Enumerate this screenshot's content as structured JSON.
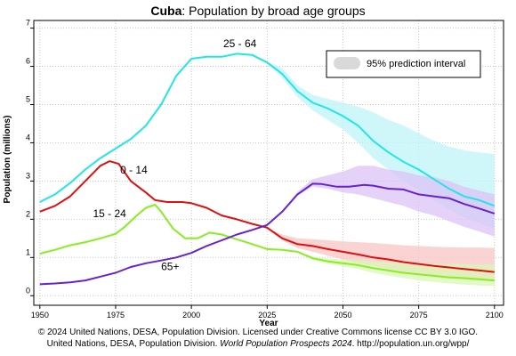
{
  "chart_data": {
    "type": "line",
    "title_country": "Cuba",
    "title_rest": ": Population by broad age groups",
    "xlabel": "Year",
    "ylabel": "Population (millions)",
    "xlim": [
      1948,
      2103
    ],
    "ylim": [
      -0.25,
      7.2
    ],
    "x_ticks": [
      1950,
      1975,
      2000,
      2025,
      2050,
      2075,
      2100
    ],
    "y_ticks": [
      0,
      1,
      2,
      3,
      4,
      5,
      6,
      7
    ],
    "grid": true,
    "legend_position": "top-right",
    "legend_label": "95% prediction interval",
    "series": [
      {
        "label": "25 - 64",
        "color": "#22e6e6",
        "band_color": "#bff3f7",
        "points": [
          [
            1950,
            2.45
          ],
          [
            1955,
            2.65
          ],
          [
            1960,
            2.95
          ],
          [
            1965,
            3.3
          ],
          [
            1970,
            3.6
          ],
          [
            1975,
            3.85
          ],
          [
            1980,
            4.1
          ],
          [
            1985,
            4.45
          ],
          [
            1990,
            5.0
          ],
          [
            1995,
            5.75
          ],
          [
            2000,
            6.2
          ],
          [
            2005,
            6.25
          ],
          [
            2010,
            6.25
          ],
          [
            2015,
            6.33
          ],
          [
            2020,
            6.3
          ],
          [
            2025,
            6.1
          ],
          [
            2030,
            5.8
          ],
          [
            2035,
            5.35
          ],
          [
            2040,
            5.05
          ],
          [
            2045,
            4.9
          ],
          [
            2050,
            4.7
          ],
          [
            2055,
            4.45
          ],
          [
            2060,
            4.05
          ],
          [
            2065,
            3.75
          ],
          [
            2070,
            3.5
          ],
          [
            2075,
            3.3
          ],
          [
            2080,
            3.05
          ],
          [
            2085,
            2.8
          ],
          [
            2090,
            2.6
          ],
          [
            2095,
            2.5
          ],
          [
            2100,
            2.35
          ]
        ],
        "band": [
          [
            2024,
            6.15,
            6.15
          ],
          [
            2030,
            5.95,
            5.7
          ],
          [
            2035,
            5.5,
            5.2
          ],
          [
            2040,
            5.25,
            4.85
          ],
          [
            2045,
            5.15,
            4.6
          ],
          [
            2050,
            5.05,
            4.35
          ],
          [
            2055,
            4.95,
            4.0
          ],
          [
            2060,
            4.8,
            3.6
          ],
          [
            2065,
            4.6,
            3.3
          ],
          [
            2070,
            4.45,
            3.0
          ],
          [
            2075,
            4.25,
            2.75
          ],
          [
            2080,
            4.05,
            2.5
          ],
          [
            2085,
            3.9,
            2.25
          ],
          [
            2090,
            3.8,
            2.05
          ],
          [
            2095,
            3.75,
            1.9
          ],
          [
            2100,
            3.7,
            1.75
          ]
        ],
        "label_pos": [
          2016,
          6.5
        ]
      },
      {
        "label": "0 - 14",
        "color": "#dd1010",
        "band_color": "#f8c4c4",
        "points": [
          [
            1950,
            2.2
          ],
          [
            1955,
            2.35
          ],
          [
            1960,
            2.6
          ],
          [
            1965,
            3.0
          ],
          [
            1970,
            3.4
          ],
          [
            1973,
            3.52
          ],
          [
            1976,
            3.45
          ],
          [
            1980,
            3.0
          ],
          [
            1985,
            2.7
          ],
          [
            1988,
            2.5
          ],
          [
            1992,
            2.45
          ],
          [
            1997,
            2.45
          ],
          [
            2000,
            2.42
          ],
          [
            2005,
            2.3
          ],
          [
            2010,
            2.1
          ],
          [
            2015,
            2.0
          ],
          [
            2020,
            1.88
          ],
          [
            2025,
            1.78
          ],
          [
            2030,
            1.5
          ],
          [
            2035,
            1.35
          ],
          [
            2040,
            1.3
          ],
          [
            2045,
            1.22
          ],
          [
            2050,
            1.15
          ],
          [
            2055,
            1.08
          ],
          [
            2060,
            1.0
          ],
          [
            2065,
            0.95
          ],
          [
            2070,
            0.88
          ],
          [
            2075,
            0.83
          ],
          [
            2080,
            0.78
          ],
          [
            2085,
            0.74
          ],
          [
            2090,
            0.7
          ],
          [
            2095,
            0.66
          ],
          [
            2100,
            0.62
          ]
        ],
        "band": [
          [
            2024,
            1.8,
            1.8
          ],
          [
            2030,
            1.6,
            1.45
          ],
          [
            2035,
            1.5,
            1.25
          ],
          [
            2040,
            1.48,
            1.15
          ],
          [
            2045,
            1.45,
            1.05
          ],
          [
            2050,
            1.42,
            0.95
          ],
          [
            2055,
            1.4,
            0.85
          ],
          [
            2060,
            1.38,
            0.78
          ],
          [
            2065,
            1.35,
            0.7
          ],
          [
            2070,
            1.32,
            0.62
          ],
          [
            2075,
            1.3,
            0.55
          ],
          [
            2080,
            1.28,
            0.5
          ],
          [
            2085,
            1.27,
            0.45
          ],
          [
            2090,
            1.26,
            0.42
          ],
          [
            2095,
            1.26,
            0.39
          ],
          [
            2100,
            1.25,
            0.36
          ]
        ],
        "label_pos": [
          1981,
          3.2
        ]
      },
      {
        "label": "15 - 24",
        "color": "#88ee22",
        "band_color": "#daf7b6",
        "points": [
          [
            1950,
            1.1
          ],
          [
            1955,
            1.2
          ],
          [
            1960,
            1.32
          ],
          [
            1965,
            1.4
          ],
          [
            1970,
            1.5
          ],
          [
            1975,
            1.62
          ],
          [
            1978,
            1.8
          ],
          [
            1982,
            2.1
          ],
          [
            1985,
            2.3
          ],
          [
            1988,
            2.38
          ],
          [
            1990,
            2.2
          ],
          [
            1994,
            1.75
          ],
          [
            1998,
            1.5
          ],
          [
            2002,
            1.5
          ],
          [
            2006,
            1.65
          ],
          [
            2010,
            1.6
          ],
          [
            2014,
            1.5
          ],
          [
            2018,
            1.4
          ],
          [
            2022,
            1.3
          ],
          [
            2025,
            1.22
          ],
          [
            2030,
            1.2
          ],
          [
            2035,
            1.15
          ],
          [
            2040,
            0.98
          ],
          [
            2045,
            0.9
          ],
          [
            2050,
            0.85
          ],
          [
            2055,
            0.8
          ],
          [
            2060,
            0.72
          ],
          [
            2065,
            0.66
          ],
          [
            2070,
            0.6
          ],
          [
            2075,
            0.56
          ],
          [
            2080,
            0.52
          ],
          [
            2085,
            0.48
          ],
          [
            2090,
            0.46
          ],
          [
            2095,
            0.43
          ],
          [
            2100,
            0.4
          ]
        ],
        "band": [
          [
            2035,
            1.15,
            1.15
          ],
          [
            2040,
            1.02,
            0.94
          ],
          [
            2045,
            0.97,
            0.84
          ],
          [
            2050,
            0.95,
            0.77
          ],
          [
            2055,
            0.93,
            0.7
          ],
          [
            2060,
            0.9,
            0.6
          ],
          [
            2065,
            0.88,
            0.53
          ],
          [
            2070,
            0.86,
            0.46
          ],
          [
            2075,
            0.85,
            0.4
          ],
          [
            2080,
            0.84,
            0.36
          ],
          [
            2085,
            0.83,
            0.32
          ],
          [
            2090,
            0.83,
            0.29
          ],
          [
            2095,
            0.82,
            0.27
          ],
          [
            2100,
            0.82,
            0.25
          ]
        ],
        "label_pos": [
          1973,
          2.05
        ]
      },
      {
        "label": "65+",
        "color": "#6622cc",
        "band_color": "#dcc3f7",
        "points": [
          [
            1950,
            0.3
          ],
          [
            1955,
            0.32
          ],
          [
            1960,
            0.35
          ],
          [
            1965,
            0.4
          ],
          [
            1970,
            0.5
          ],
          [
            1975,
            0.6
          ],
          [
            1980,
            0.75
          ],
          [
            1985,
            0.85
          ],
          [
            1990,
            0.92
          ],
          [
            1995,
            1.0
          ],
          [
            2000,
            1.12
          ],
          [
            2005,
            1.3
          ],
          [
            2010,
            1.45
          ],
          [
            2015,
            1.6
          ],
          [
            2020,
            1.72
          ],
          [
            2025,
            1.85
          ],
          [
            2030,
            2.2
          ],
          [
            2035,
            2.65
          ],
          [
            2040,
            2.93
          ],
          [
            2043,
            2.92
          ],
          [
            2048,
            2.85
          ],
          [
            2052,
            2.85
          ],
          [
            2057,
            2.9
          ],
          [
            2060,
            2.88
          ],
          [
            2065,
            2.8
          ],
          [
            2070,
            2.78
          ],
          [
            2075,
            2.65
          ],
          [
            2080,
            2.6
          ],
          [
            2085,
            2.55
          ],
          [
            2090,
            2.4
          ],
          [
            2095,
            2.28
          ],
          [
            2100,
            2.15
          ]
        ],
        "band": [
          [
            2030,
            2.2,
            2.2
          ],
          [
            2035,
            2.72,
            2.62
          ],
          [
            2040,
            3.05,
            2.85
          ],
          [
            2045,
            3.15,
            2.8
          ],
          [
            2050,
            3.25,
            2.7
          ],
          [
            2055,
            3.4,
            2.65
          ],
          [
            2060,
            3.4,
            2.55
          ],
          [
            2065,
            3.3,
            2.45
          ],
          [
            2070,
            3.25,
            2.35
          ],
          [
            2075,
            3.15,
            2.2
          ],
          [
            2080,
            3.1,
            2.1
          ],
          [
            2085,
            3.0,
            1.95
          ],
          [
            2090,
            2.85,
            1.8
          ],
          [
            2095,
            2.75,
            1.68
          ],
          [
            2100,
            2.65,
            1.55
          ]
        ],
        "label_pos": [
          1993,
          0.67
        ]
      }
    ]
  },
  "footer": {
    "line1": "© 2024 United Nations, DESA, Population Division. Licensed under Creative Commons license CC BY 3.0 IGO.",
    "line2_prefix": "United Nations, DESA, Population Division. ",
    "line2_italic": "World Population Prospects 2024",
    "line2_suffix": ". http://population.un.org/wpp/"
  }
}
